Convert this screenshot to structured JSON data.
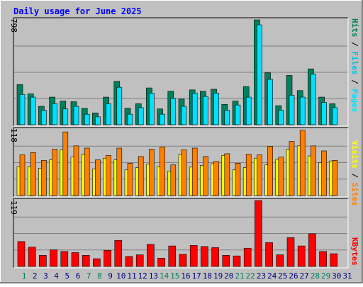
{
  "title": "Daily usage for June 2025",
  "colors": {
    "background": "#c0c0c0",
    "frame_light": "#ffffff",
    "frame_dark": "#808080",
    "title": "#0000ff",
    "hits": "#00805c",
    "files": "#00e0ff",
    "pages": "#00e0ff",
    "sites": "#ff8000",
    "visits": "#ffff00",
    "kbytes": "#ff0000",
    "weekend": "#00805c",
    "weekday": "#0000ff"
  },
  "chart_data": [
    {
      "type": "bar",
      "panel": "top",
      "max_label": "798",
      "ylim": [
        0,
        798
      ],
      "side_label": [
        "Pages",
        "Files",
        "Hits"
      ],
      "categories": [
        "1",
        "2",
        "3",
        "4",
        "5",
        "6",
        "7",
        "8",
        "9",
        "10",
        "11",
        "12",
        "13",
        "14",
        "15",
        "16",
        "17",
        "18",
        "19",
        "20",
        "21",
        "22",
        "23",
        "24",
        "25",
        "26",
        "27",
        "28",
        "29",
        "30",
        "31"
      ],
      "series": [
        {
          "name": "Hits",
          "values": [
            305,
            235,
            140,
            210,
            180,
            175,
            125,
            90,
            210,
            330,
            125,
            160,
            280,
            120,
            255,
            195,
            265,
            255,
            270,
            155,
            180,
            290,
            798,
            395,
            145,
            375,
            260,
            425,
            210,
            160,
            0
          ]
        },
        {
          "name": "Files",
          "values": [
            230,
            210,
            110,
            160,
            120,
            140,
            80,
            60,
            160,
            285,
            80,
            130,
            240,
            80,
            200,
            140,
            240,
            215,
            240,
            110,
            150,
            210,
            760,
            345,
            110,
            225,
            210,
            385,
            170,
            130,
            0
          ]
        }
      ]
    },
    {
      "type": "bar",
      "panel": "middle",
      "max_label": "118",
      "ylim": [
        0,
        118
      ],
      "side_label": [
        "Sites",
        "Visits"
      ],
      "categories": [
        "1",
        "2",
        "3",
        "4",
        "5",
        "6",
        "7",
        "8",
        "9",
        "10",
        "11",
        "12",
        "13",
        "14",
        "15",
        "16",
        "17",
        "18",
        "19",
        "20",
        "21",
        "22",
        "23",
        "24",
        "25",
        "26",
        "27",
        "28",
        "29",
        "30",
        "31"
      ],
      "series": [
        {
          "name": "Visits",
          "values": [
            52,
            52,
            49,
            64,
            82,
            69,
            74,
            48,
            67,
            64,
            46,
            50,
            56,
            52,
            44,
            73,
            51,
            54,
            57,
            72,
            46,
            50,
            67,
            55,
            65,
            83,
            89,
            71,
            59,
            62,
            0
          ]
        },
        {
          "name": "Sites",
          "values": [
            73,
            77,
            63,
            83,
            114,
            89,
            85,
            64,
            72,
            85,
            58,
            70,
            83,
            87,
            55,
            82,
            85,
            70,
            61,
            75,
            58,
            74,
            73,
            88,
            69,
            97,
            117,
            89,
            80,
            63,
            0
          ]
        }
      ]
    },
    {
      "type": "bar",
      "panel": "bottom",
      "max_label": "119",
      "ylim": [
        0,
        119
      ],
      "side_label": [
        "KBytes"
      ],
      "categories": [
        "1",
        "2",
        "3",
        "4",
        "5",
        "6",
        "7",
        "8",
        "9",
        "10",
        "11",
        "12",
        "13",
        "14",
        "15",
        "16",
        "17",
        "18",
        "19",
        "20",
        "21",
        "22",
        "23",
        "24",
        "25",
        "26",
        "27",
        "28",
        "29",
        "30",
        "31"
      ],
      "series": [
        {
          "name": "KBytes",
          "values": [
            45,
            35,
            20,
            30,
            27,
            25,
            20,
            14,
            29,
            47,
            18,
            21,
            40,
            15,
            37,
            22,
            38,
            36,
            34,
            20,
            19,
            33,
            119,
            43,
            21,
            52,
            37,
            59,
            27,
            23,
            0
          ]
        }
      ]
    }
  ],
  "x_axis": {
    "days": [
      "1",
      "2",
      "3",
      "4",
      "5",
      "6",
      "7",
      "8",
      "9",
      "10",
      "11",
      "12",
      "13",
      "14",
      "15",
      "16",
      "17",
      "18",
      "19",
      "20",
      "21",
      "22",
      "23",
      "24",
      "25",
      "26",
      "27",
      "28",
      "29",
      "30",
      "31"
    ],
    "weekend": [
      "1",
      "7",
      "8",
      "14",
      "15",
      "21",
      "22",
      "28",
      "29"
    ]
  }
}
